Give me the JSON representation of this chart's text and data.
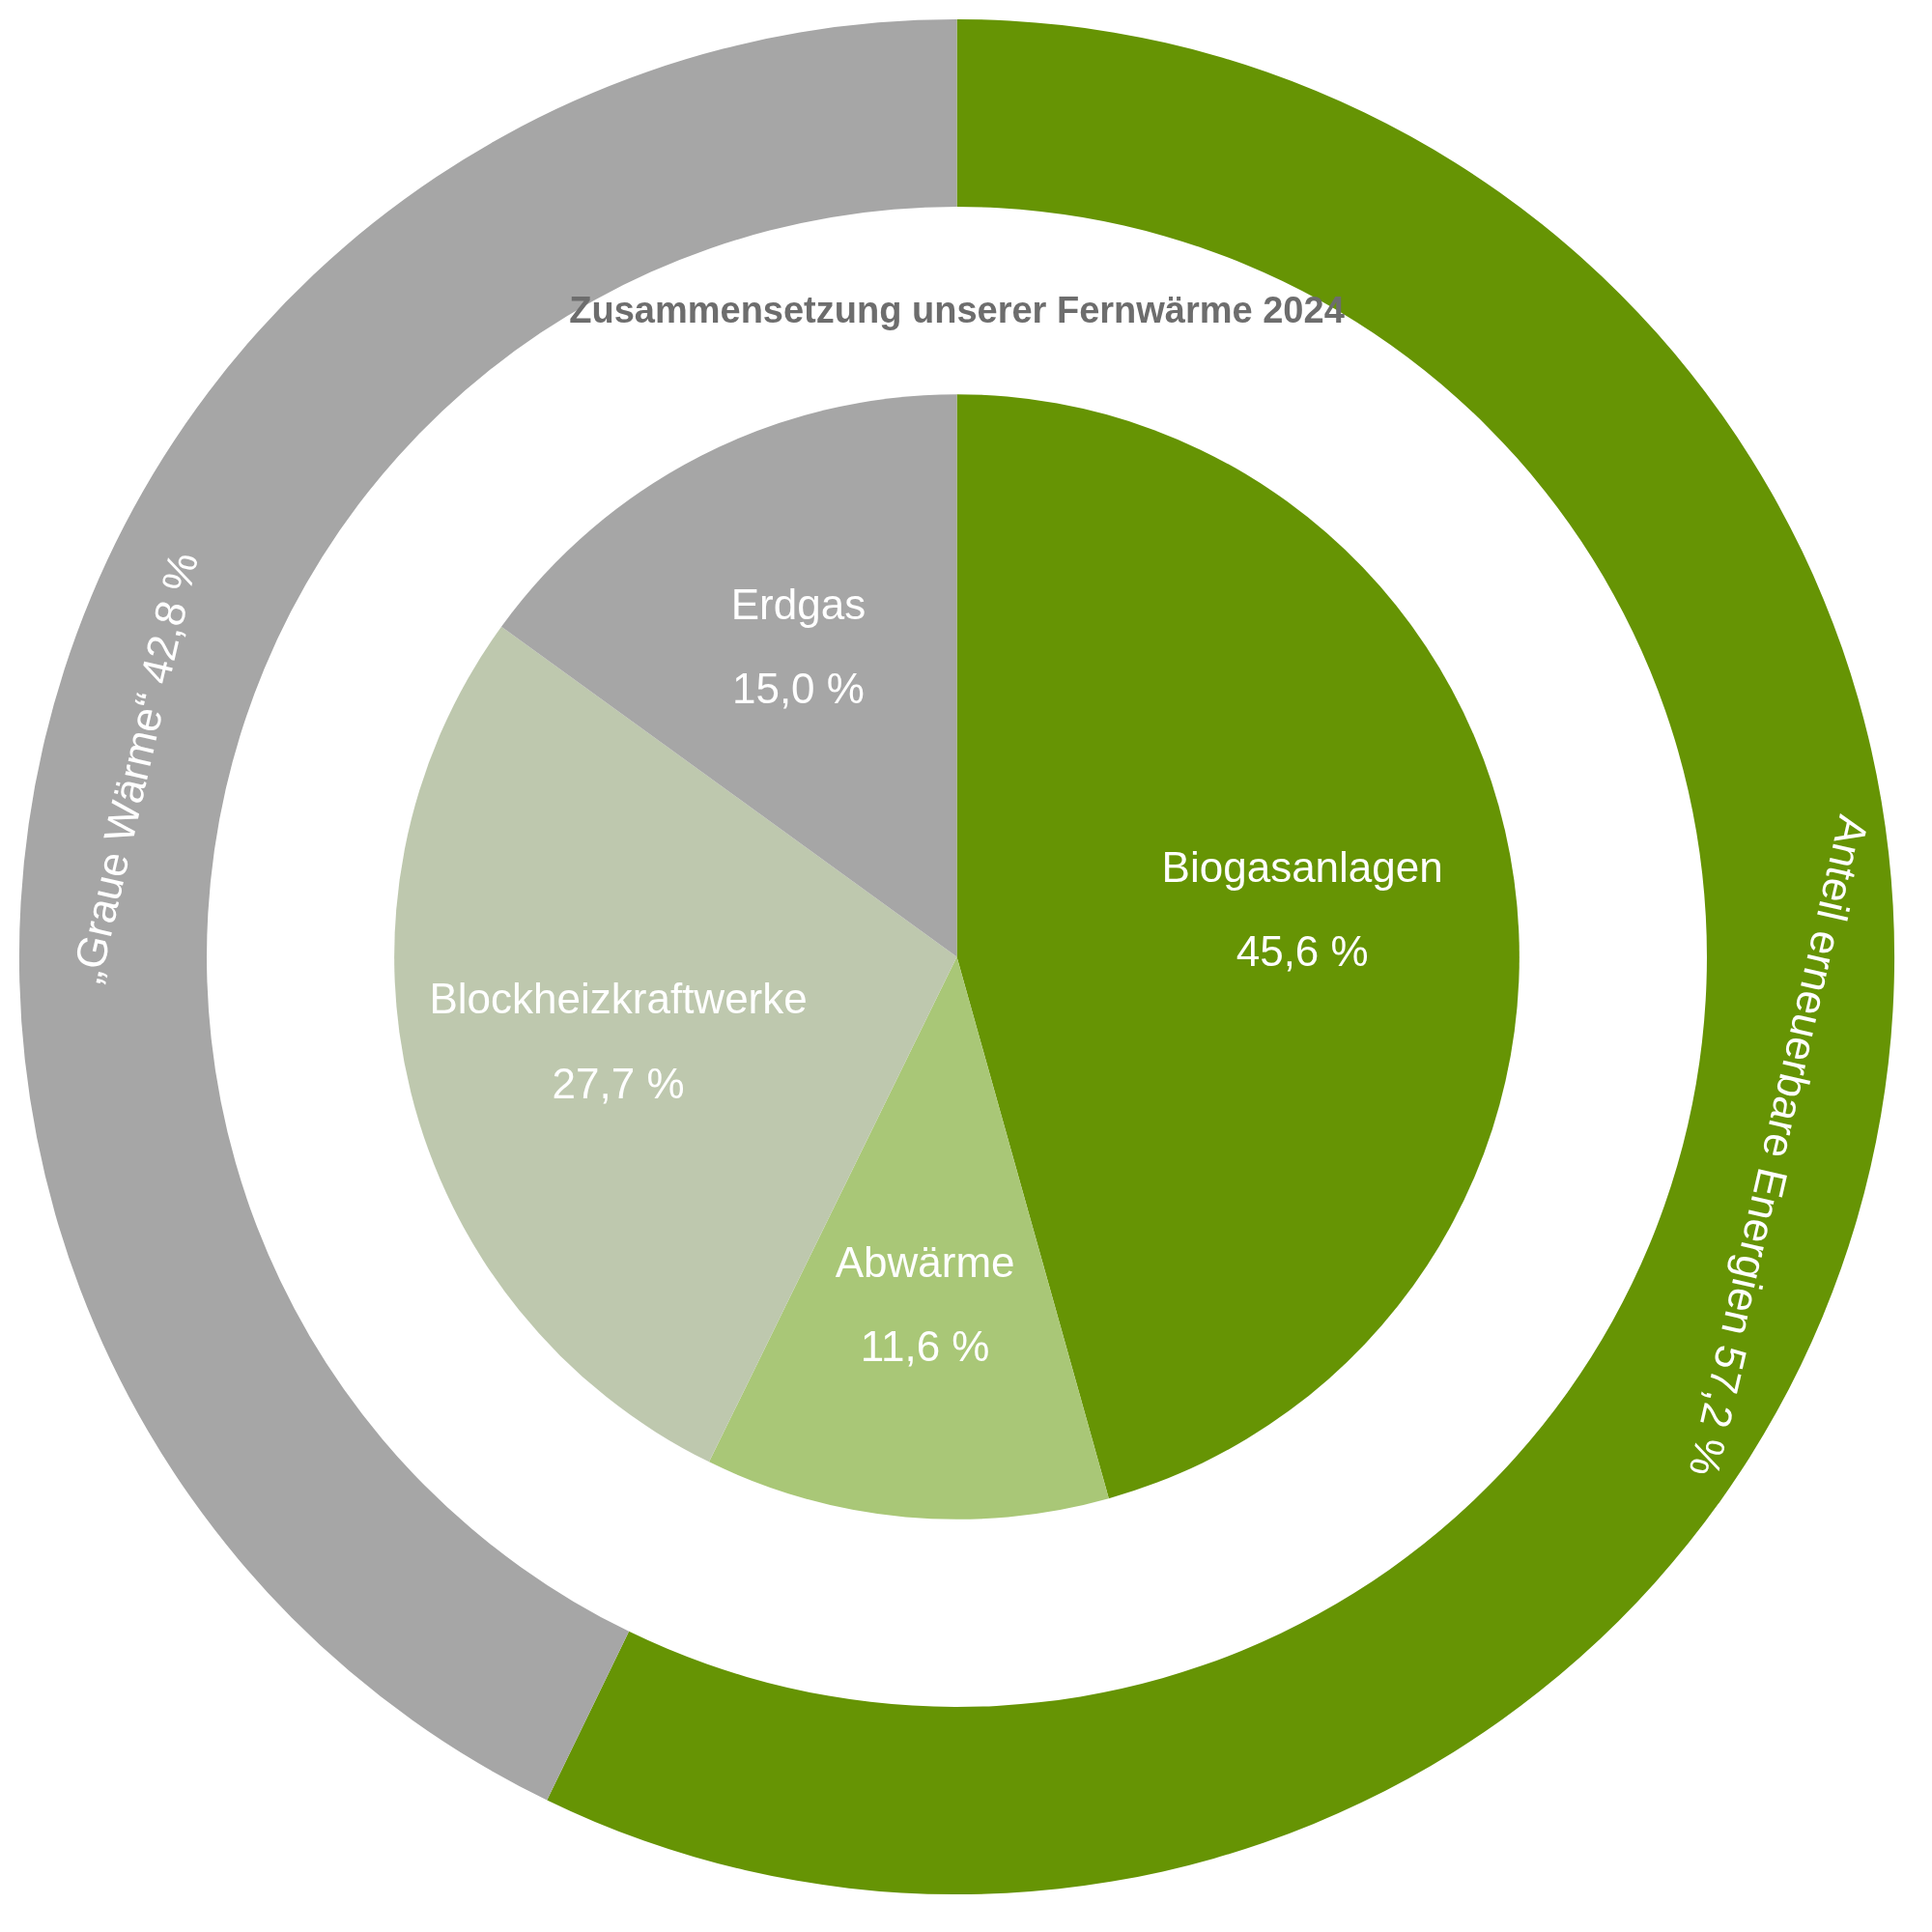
{
  "chart_data": {
    "type": "pie",
    "title": "Zusammensetzung unserer Fernwärme 2024",
    "categories": [
      "Biogasanlagen",
      "Abwärme",
      "Blockheizkraftwerke",
      "Erdgas",
      "Anteil erneuerbare Energien",
      "„Graue Wärme“"
    ],
    "series": [
      {
        "values": [
          45.6,
          11.6,
          27.7,
          15.0,
          null,
          null
        ],
        "value_labels": [
          "45,6 %",
          "11,6 %",
          "27,7 %",
          "15,0 %",
          null,
          null
        ],
        "colors": [
          "#669404",
          "#a9c777",
          "#bec8ae",
          "#a6a6a6",
          null,
          null
        ]
      },
      {
        "type": "donut",
        "values": [
          null,
          null,
          null,
          null,
          57.2,
          42.8
        ],
        "value_labels": [
          null,
          null,
          null,
          null,
          "57,2 %",
          "42,8 %"
        ],
        "colors": [
          null,
          null,
          null,
          null,
          "#669404",
          "#a6a6a6"
        ]
      }
    ]
  }
}
